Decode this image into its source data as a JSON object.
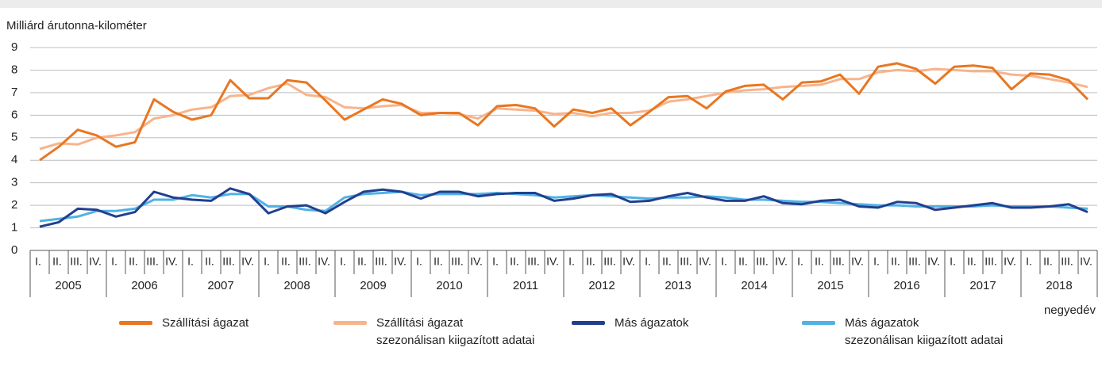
{
  "chart_data": {
    "type": "line",
    "y_label": "Milliárd árutonna-kilométer",
    "x_label": "negyedév",
    "categories": [
      "I.",
      "II.",
      "III.",
      "IV.",
      "I.",
      "II.",
      "III.",
      "IV.",
      "I.",
      "II.",
      "III.",
      "IV.",
      "I.",
      "II.",
      "III.",
      "IV.",
      "I.",
      "II.",
      "III.",
      "IV.",
      "I.",
      "II.",
      "III.",
      "IV.",
      "I.",
      "II.",
      "III.",
      "IV.",
      "I.",
      "II.",
      "III.",
      "IV.",
      "I.",
      "II.",
      "III.",
      "IV.",
      "I.",
      "II.",
      "III.",
      "IV.",
      "I.",
      "II.",
      "III.",
      "IV.",
      "I.",
      "II.",
      "III.",
      "IV.",
      "I.",
      "II.",
      "III.",
      "IV.",
      "I.",
      "II.",
      "III.",
      "IV."
    ],
    "groups": [
      "2005",
      "2006",
      "2007",
      "2008",
      "2009",
      "2010",
      "2011",
      "2012",
      "2013",
      "2014",
      "2015",
      "2016",
      "2017",
      "2018"
    ],
    "ylim": [
      0,
      9
    ],
    "yticks": [
      0,
      1,
      2,
      3,
      4,
      5,
      6,
      7,
      8,
      9
    ],
    "grid": true,
    "series": [
      {
        "name": "Szállítási ágazat",
        "color": "#e87722",
        "values": [
          4.0,
          4.6,
          5.35,
          5.1,
          4.6,
          4.8,
          6.7,
          6.15,
          5.8,
          6.0,
          7.55,
          6.75,
          6.75,
          7.55,
          7.45,
          6.65,
          5.8,
          6.25,
          6.7,
          6.5,
          6.0,
          6.1,
          6.1,
          5.55,
          6.4,
          6.45,
          6.3,
          5.5,
          6.25,
          6.1,
          6.3,
          5.55,
          6.15,
          6.8,
          6.85,
          6.3,
          7.05,
          7.3,
          7.35,
          6.7,
          7.45,
          7.5,
          7.8,
          6.95,
          8.15,
          8.3,
          8.05,
          7.4,
          8.15,
          8.2,
          8.1,
          7.15,
          7.85,
          7.8,
          7.55,
          6.7
        ]
      },
      {
        "name": "Szállítási ágazat\nszezonálisan kiigazított adatai",
        "color": "#f8b48c",
        "values": [
          4.5,
          4.75,
          4.7,
          5.0,
          5.1,
          5.25,
          5.85,
          6.0,
          6.25,
          6.35,
          6.85,
          6.9,
          7.2,
          7.4,
          6.9,
          6.8,
          6.35,
          6.3,
          6.4,
          6.45,
          6.1,
          6.1,
          6.05,
          5.85,
          6.3,
          6.25,
          6.2,
          6.05,
          6.1,
          5.95,
          6.1,
          6.1,
          6.2,
          6.6,
          6.7,
          6.85,
          7.0,
          7.1,
          7.15,
          7.25,
          7.3,
          7.35,
          7.6,
          7.6,
          7.9,
          8.0,
          7.95,
          8.05,
          8.0,
          7.95,
          7.95,
          7.8,
          7.75,
          7.6,
          7.45,
          7.25
        ]
      },
      {
        "name": "Más ágazatok",
        "color": "#223f8f",
        "values": [
          1.05,
          1.25,
          1.85,
          1.8,
          1.5,
          1.7,
          2.6,
          2.35,
          2.25,
          2.2,
          2.75,
          2.5,
          1.65,
          1.95,
          2.0,
          1.65,
          2.15,
          2.6,
          2.7,
          2.6,
          2.3,
          2.6,
          2.6,
          2.4,
          2.5,
          2.55,
          2.55,
          2.2,
          2.3,
          2.45,
          2.5,
          2.15,
          2.2,
          2.4,
          2.55,
          2.35,
          2.2,
          2.2,
          2.4,
          2.1,
          2.05,
          2.2,
          2.25,
          1.95,
          1.9,
          2.15,
          2.1,
          1.8,
          1.9,
          2.0,
          2.1,
          1.9,
          1.9,
          1.95,
          2.05,
          1.7
        ]
      },
      {
        "name": "Más ágazatok\nszezonálisan kiigazított adatai",
        "color": "#4fb2e5",
        "values": [
          1.3,
          1.4,
          1.5,
          1.75,
          1.75,
          1.85,
          2.25,
          2.25,
          2.45,
          2.35,
          2.5,
          2.5,
          1.95,
          1.95,
          1.8,
          1.75,
          2.35,
          2.5,
          2.55,
          2.6,
          2.45,
          2.5,
          2.5,
          2.5,
          2.55,
          2.5,
          2.45,
          2.35,
          2.4,
          2.45,
          2.4,
          2.35,
          2.3,
          2.35,
          2.35,
          2.4,
          2.35,
          2.25,
          2.25,
          2.2,
          2.15,
          2.15,
          2.1,
          2.05,
          2.0,
          2.0,
          1.95,
          1.95,
          1.95,
          1.95,
          2.0,
          1.95,
          1.95,
          1.95,
          1.9,
          1.85
        ]
      }
    ]
  }
}
